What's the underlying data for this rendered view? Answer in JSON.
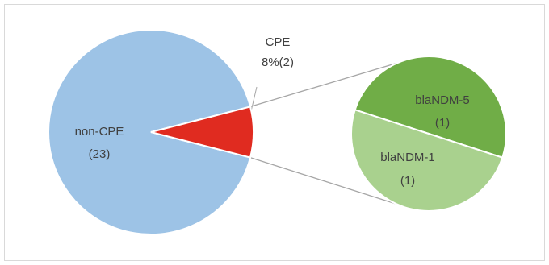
{
  "chart_data": {
    "type": "pie",
    "subtype": "pie-of-pie",
    "title": "",
    "main": {
      "slices": [
        {
          "name": "non-CPE",
          "value": 23,
          "label": "non-CPE",
          "value_label": "(23)",
          "color": "#9dc3e6"
        },
        {
          "name": "CPE",
          "value": 2,
          "label": "CPE",
          "value_label": "8%(2)",
          "color": "#e02b20"
        }
      ]
    },
    "secondary": {
      "breakdown_of": "CPE",
      "slices": [
        {
          "name": "blaNDM-5",
          "value": 1,
          "label": "blaNDM-5",
          "value_label": "(1)",
          "color": "#70ad47"
        },
        {
          "name": "blaNDM-1",
          "value": 1,
          "label": "blaNDM-1",
          "value_label": "(1)",
          "color": "#a9d18e"
        }
      ]
    },
    "legend": "none",
    "colors": {
      "slice_border": "#ffffff",
      "connector": "#a6a6a6",
      "frame": "#d9d9d9",
      "text": "#404040"
    }
  }
}
